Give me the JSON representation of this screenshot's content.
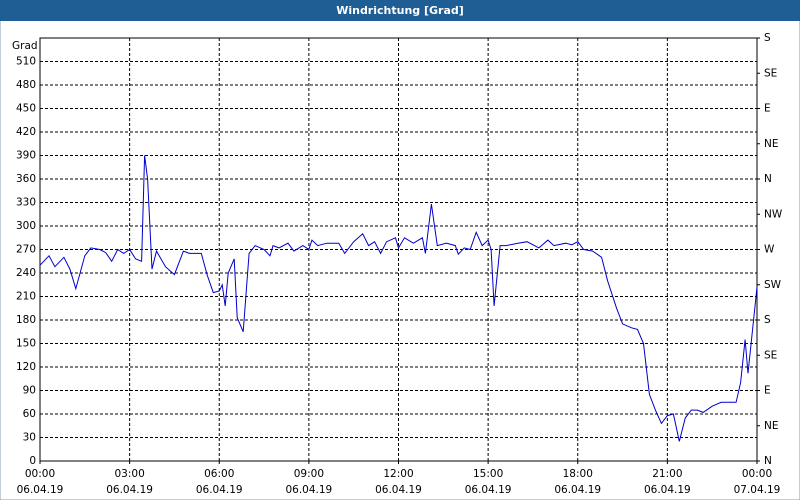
{
  "chart_data": {
    "type": "line",
    "title": "Windrichtung [Grad]",
    "ylabel": "Grad",
    "x": [
      0,
      0.3,
      0.5,
      0.8,
      1.0,
      1.2,
      1.5,
      1.7,
      2.0,
      2.2,
      2.4,
      2.6,
      2.8,
      3.0,
      3.2,
      3.4,
      3.5,
      3.6,
      3.75,
      3.9,
      4.2,
      4.5,
      4.8,
      5.0,
      5.4,
      5.6,
      5.8,
      6.0,
      6.1,
      6.2,
      6.3,
      6.5,
      6.6,
      6.8,
      7.0,
      7.2,
      7.5,
      7.7,
      7.8,
      8.0,
      8.3,
      8.5,
      8.8,
      9.0,
      9.1,
      9.3,
      9.6,
      10.0,
      10.2,
      10.5,
      10.8,
      11.0,
      11.2,
      11.4,
      11.6,
      11.9,
      12.0,
      12.2,
      12.5,
      12.8,
      12.9,
      13.1,
      13.3,
      13.6,
      13.9,
      14.0,
      14.2,
      14.4,
      14.6,
      14.8,
      15.0,
      15.1,
      15.2,
      15.4,
      15.6,
      16.0,
      16.3,
      16.7,
      17.0,
      17.2,
      17.6,
      17.8,
      18.0,
      18.2,
      18.5,
      18.8,
      19.0,
      19.3,
      19.5,
      19.8,
      20.0,
      20.2,
      20.4,
      20.6,
      20.8,
      21.0,
      21.2,
      21.4,
      21.6,
      21.8,
      22.0,
      22.2,
      22.5,
      22.8,
      23.3,
      23.45,
      23.6,
      23.7,
      24.0
    ],
    "series": [
      {
        "name": "Windrichtung",
        "color": "#0000cc",
        "values": [
          250,
          262,
          248,
          260,
          245,
          220,
          262,
          272,
          270,
          266,
          255,
          270,
          265,
          270,
          258,
          255,
          390,
          360,
          245,
          268,
          248,
          238,
          268,
          265,
          265,
          237,
          215,
          217,
          225,
          198,
          240,
          258,
          183,
          165,
          265,
          275,
          270,
          262,
          275,
          272,
          278,
          268,
          275,
          270,
          282,
          275,
          278,
          278,
          265,
          280,
          290,
          275,
          280,
          265,
          280,
          285,
          272,
          285,
          278,
          285,
          265,
          328,
          275,
          278,
          275,
          264,
          272,
          270,
          292,
          275,
          282,
          270,
          198,
          275,
          275,
          278,
          280,
          272,
          282,
          275,
          278,
          276,
          280,
          270,
          268,
          260,
          230,
          195,
          175,
          170,
          168,
          150,
          85,
          65,
          48,
          58,
          60,
          25,
          55,
          65,
          65,
          62,
          70,
          75,
          75,
          100,
          155,
          112,
          222
        ]
      }
    ],
    "xlim": [
      0,
      24
    ],
    "xticks": [
      {
        "value": 0,
        "label": "00:00"
      },
      {
        "value": 3,
        "label": "03:00"
      },
      {
        "value": 6,
        "label": "06:00"
      },
      {
        "value": 9,
        "label": "09:00"
      },
      {
        "value": 12,
        "label": "12:00"
      },
      {
        "value": 15,
        "label": "15:00"
      },
      {
        "value": 18,
        "label": "18:00"
      },
      {
        "value": 21,
        "label": "21:00"
      },
      {
        "value": 24,
        "label": "00:00"
      }
    ],
    "xtick_dates": [
      "06.04.19",
      "06.04.19",
      "06.04.19",
      "06.04.19",
      "06.04.19",
      "06.04.19",
      "06.04.19",
      "06.04.19",
      "07.04.19"
    ],
    "ylim": [
      0,
      540
    ],
    "yticks": [
      0,
      30,
      60,
      90,
      120,
      150,
      180,
      210,
      240,
      270,
      300,
      330,
      360,
      390,
      420,
      450,
      480,
      510
    ],
    "y2lim": [
      0,
      540
    ],
    "y2ticks": [
      {
        "value": 0,
        "label": "N"
      },
      {
        "value": 45,
        "label": "NE"
      },
      {
        "value": 90,
        "label": "E"
      },
      {
        "value": 135,
        "label": "SE"
      },
      {
        "value": 180,
        "label": "S"
      },
      {
        "value": 225,
        "label": "SW"
      },
      {
        "value": 270,
        "label": "W"
      },
      {
        "value": 315,
        "label": "NW"
      },
      {
        "value": 360,
        "label": "N"
      },
      {
        "value": 405,
        "label": "NE"
      },
      {
        "value": 450,
        "label": "E"
      },
      {
        "value": 495,
        "label": "SE"
      },
      {
        "value": 540,
        "label": "S"
      }
    ],
    "grid": true
  }
}
